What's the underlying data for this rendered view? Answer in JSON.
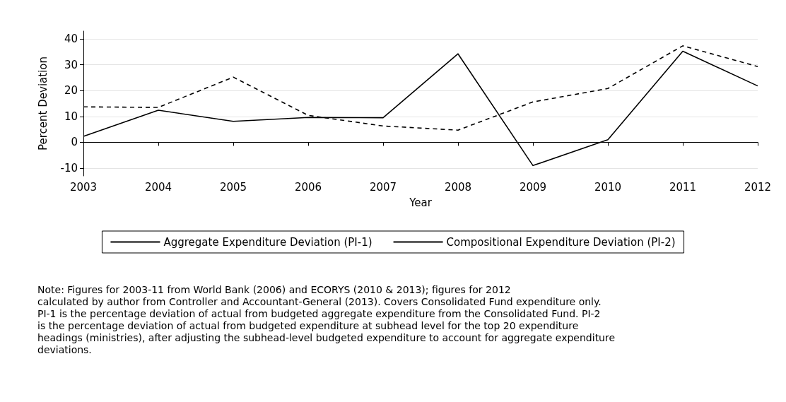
{
  "chart_data": {
    "type": "line",
    "xlabel": "Year",
    "ylabel": "Percent Deviation",
    "x": [
      2003,
      2004,
      2005,
      2006,
      2007,
      2008,
      2009,
      2010,
      2011,
      2012
    ],
    "series": [
      {
        "name": "Aggregate Expenditure Deviation (PI-1)",
        "color": "#000000",
        "line_style": "solid",
        "values": [
          2.3,
          12.4,
          8.1,
          9.6,
          9.5,
          34.2,
          -9,
          1,
          35.2,
          21.8
        ]
      },
      {
        "name": "Compositional Expenditure Deviation (PI-2)",
        "color": "#000000",
        "line_style": "dashed",
        "values": [
          13.7,
          13.5,
          25.2,
          10.4,
          6.3,
          4.7,
          15.6,
          20.8,
          37.3,
          29.3
        ]
      }
    ],
    "xlim": [
      2003,
      2012
    ],
    "xticks": [
      2003,
      2004,
      2005,
      2006,
      2007,
      2008,
      2009,
      2010,
      2011,
      2012
    ],
    "ylim": [
      -13,
      43
    ],
    "yticks": [
      -10,
      0,
      10,
      20,
      30,
      40
    ],
    "grid": "y",
    "legend": "bottom",
    "marker": "none",
    "annotations": [
      "Note: Figures for 2003-11 from World Bank (2006) and ECORYS (2010 & 2013); figures for 2012\ncalculated by author from Controller and Accountant-General (2013). Covers Consolidated Fund expenditure only.\nPI-1 is the percentage deviation of actual from budgeted aggregate expenditure from the Consolidated Fund. PI-2\nis the percentage deviation of actual from budgeted expenditure at subhead level for the top 20 expenditure\nheadings (ministries), after adjusting the subhead-level budgeted expenditure to account for aggregate expenditure\ndeviations."
    ]
  }
}
